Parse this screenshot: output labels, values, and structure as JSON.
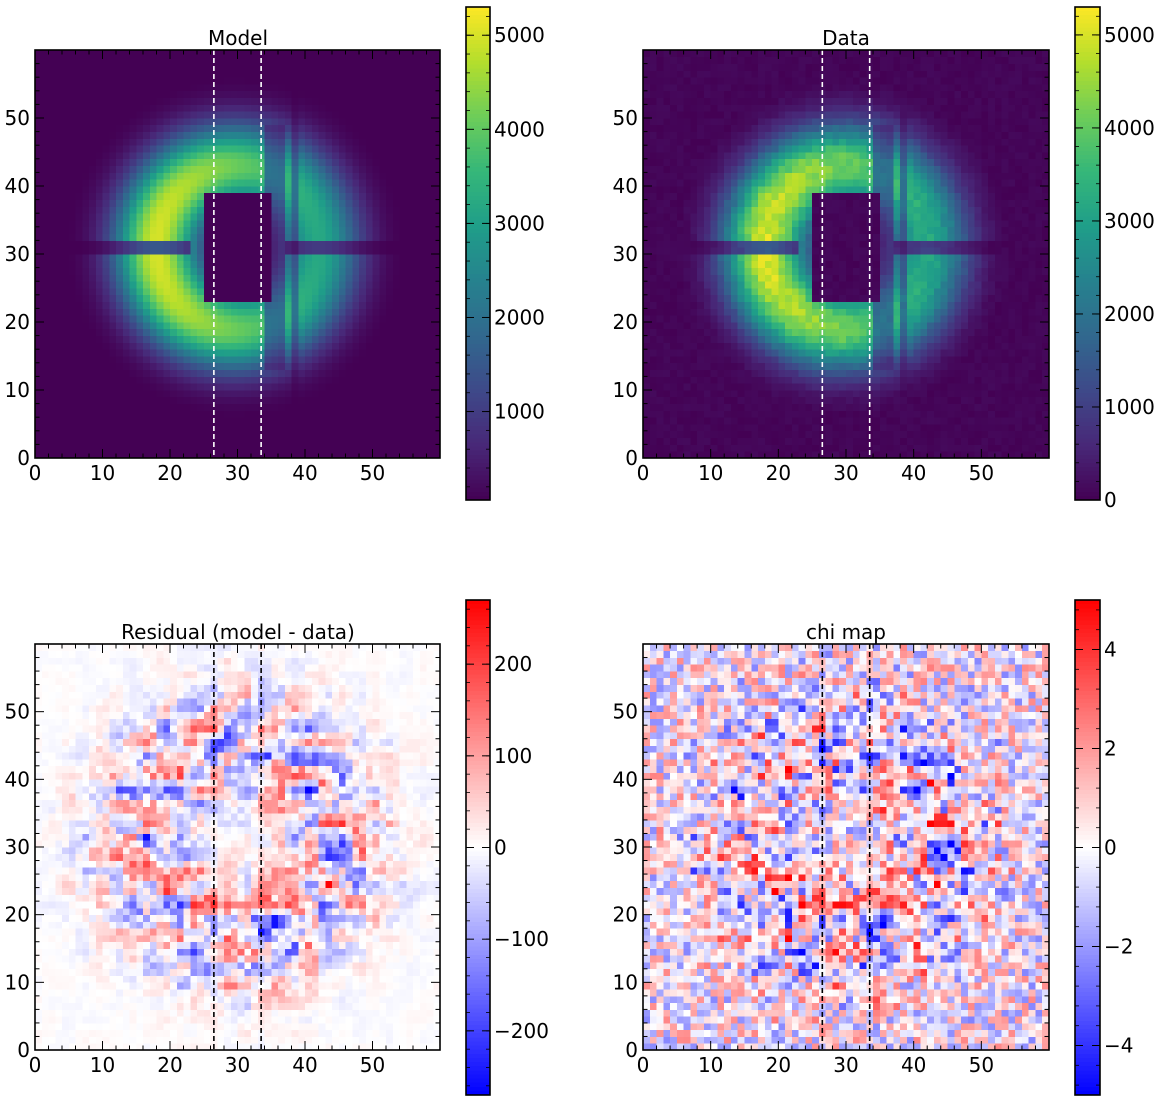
{
  "chart_data": [
    {
      "type": "heatmap",
      "title": "Model",
      "xlabel": "",
      "ylabel": "",
      "xlim": [
        0,
        60
      ],
      "ylim": [
        0,
        60
      ],
      "x_ticks": [
        0,
        10,
        20,
        30,
        40,
        50
      ],
      "y_ticks": [
        0,
        10,
        20,
        30,
        40,
        50
      ],
      "colormap": "viridis",
      "colorbar": {
        "range": [
          60,
          5300
        ],
        "ticks": [
          1000,
          2000,
          3000,
          4000,
          5000
        ]
      },
      "vlines": [
        26.5,
        33.5
      ],
      "vline_color": "#ffffff",
      "pattern": "ring",
      "grid": false
    },
    {
      "type": "heatmap",
      "title": "Data",
      "xlabel": "",
      "ylabel": "",
      "xlim": [
        0,
        60
      ],
      "ylim": [
        0,
        60
      ],
      "x_ticks": [
        0,
        10,
        20,
        30,
        40,
        50
      ],
      "y_ticks": [
        0,
        10,
        20,
        30,
        40,
        50
      ],
      "colormap": "viridis",
      "colorbar": {
        "range": [
          0,
          5300
        ],
        "ticks": [
          0,
          1000,
          2000,
          3000,
          4000,
          5000
        ]
      },
      "vlines": [
        26.5,
        33.5
      ],
      "vline_color": "#ffffff",
      "pattern": "ring-noisy",
      "grid": false
    },
    {
      "type": "heatmap",
      "title": "Residual (model - data)",
      "xlabel": "",
      "ylabel": "",
      "xlim": [
        0,
        60
      ],
      "ylim": [
        0,
        60
      ],
      "x_ticks": [
        0,
        10,
        20,
        30,
        40,
        50
      ],
      "y_ticks": [
        0,
        10,
        20,
        30,
        40,
        50
      ],
      "colormap": "bwr",
      "colorbar": {
        "range": [
          -270,
          270
        ],
        "ticks": [
          -200,
          -100,
          0,
          100,
          200
        ],
        "tick_labels": [
          "−200",
          "−100",
          "0",
          "100",
          "200"
        ]
      },
      "vlines": [
        26.5,
        33.5
      ],
      "vline_color": "#000000",
      "pattern": "residual",
      "grid": false
    },
    {
      "type": "heatmap",
      "title": "chi map",
      "xlabel": "",
      "ylabel": "",
      "xlim": [
        0,
        60
      ],
      "ylim": [
        0,
        60
      ],
      "x_ticks": [
        0,
        10,
        20,
        30,
        40,
        50
      ],
      "y_ticks": [
        0,
        10,
        20,
        30,
        40,
        50
      ],
      "colormap": "bwr",
      "colorbar": {
        "range": [
          -5,
          5
        ],
        "ticks": [
          -4,
          -2,
          0,
          2,
          4
        ],
        "tick_labels": [
          "−4",
          "−2",
          "0",
          "2",
          "4"
        ]
      },
      "vlines": [
        26.5,
        33.5
      ],
      "vline_color": "#000000",
      "pattern": "chi",
      "grid": false
    }
  ]
}
